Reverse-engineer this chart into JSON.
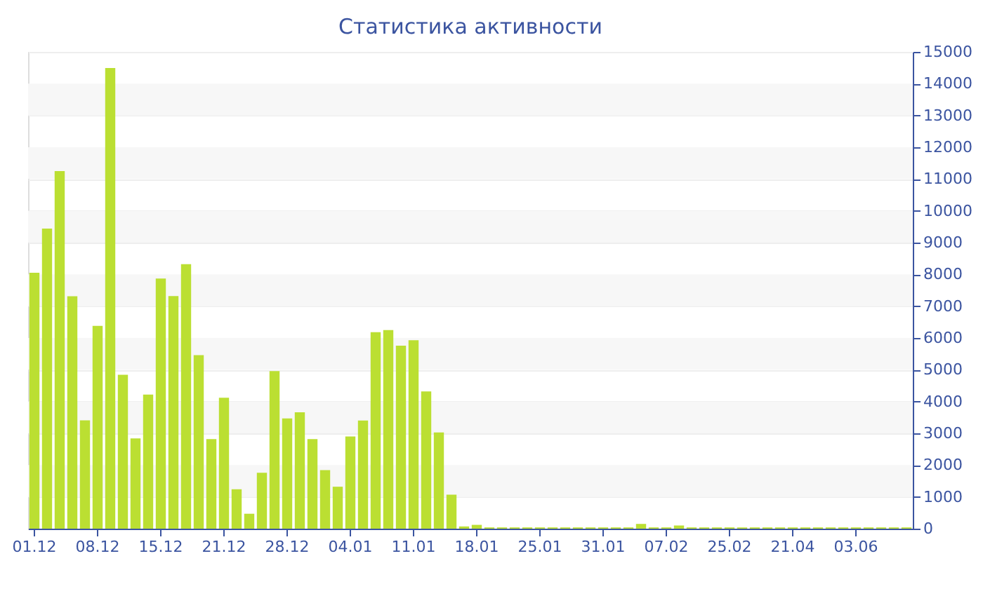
{
  "chart_data": {
    "type": "bar",
    "title": "Статистика активности",
    "categories": [
      "01.12",
      null,
      null,
      null,
      null,
      "08.12",
      null,
      null,
      null,
      null,
      "15.12",
      null,
      null,
      null,
      null,
      "21.12",
      null,
      null,
      null,
      null,
      "28.12",
      null,
      null,
      null,
      null,
      "04.01",
      null,
      null,
      null,
      null,
      "11.01",
      null,
      null,
      null,
      null,
      "18.01",
      null,
      null,
      null,
      null,
      "25.01",
      null,
      null,
      null,
      null,
      "31.01",
      null,
      null,
      null,
      null,
      "07.02",
      null,
      null,
      null,
      null,
      "25.02",
      null,
      null,
      null,
      null,
      "21.04",
      null,
      null,
      null,
      null,
      "03.06",
      null,
      null,
      null,
      null
    ],
    "values": [
      8050,
      9440,
      11250,
      7310,
      3410,
      6380,
      14490,
      4840,
      2840,
      4220,
      7870,
      7320,
      8320,
      5460,
      2820,
      4120,
      1240,
      470,
      1760,
      4960,
      3470,
      3660,
      2820,
      1840,
      1320,
      2900,
      3400,
      6180,
      6250,
      5760,
      5930,
      4320,
      3030,
      1070,
      70,
      120,
      40,
      40,
      40,
      40,
      40,
      40,
      40,
      40,
      40,
      40,
      40,
      40,
      150,
      40,
      40,
      100,
      40,
      40,
      40,
      40,
      40,
      40,
      40,
      40,
      40,
      40,
      40,
      40,
      40,
      40,
      40,
      40,
      40,
      40
    ],
    "color": "#bbdf32",
    "ylim": [
      0,
      15000
    ],
    "yticks": [
      0,
      1000,
      2000,
      3000,
      4000,
      5000,
      6000,
      7000,
      8000,
      9000,
      10000,
      11000,
      12000,
      13000,
      14000,
      15000
    ],
    "grid": "y"
  }
}
